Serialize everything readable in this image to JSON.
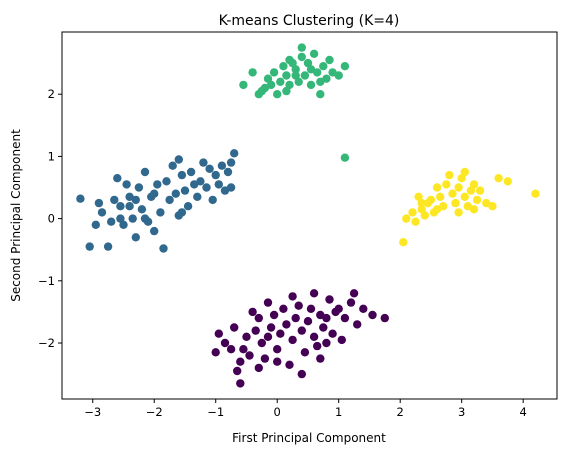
{
  "chart_data": {
    "type": "scatter",
    "title": "K-means Clustering (K=4)",
    "xlabel": "First Principal Component",
    "ylabel": "Second Principal Component",
    "xlim": [
      -3.5,
      4.55
    ],
    "ylim": [
      -2.9,
      3.0
    ],
    "xticks": [
      -3,
      -2,
      -1,
      0,
      1,
      2,
      3,
      4
    ],
    "yticks": [
      -2,
      -1,
      0,
      1,
      2
    ],
    "xtick_labels": [
      "−3",
      "−2",
      "−1",
      "0",
      "1",
      "2",
      "3",
      "4"
    ],
    "ytick_labels": [
      "−2",
      "−1",
      "0",
      "1",
      "2"
    ],
    "grid": false,
    "colors": {
      "cluster_0": "#440154",
      "cluster_1": "#31688e",
      "cluster_2": "#35b779",
      "cluster_3": "#fde725"
    },
    "series": [
      {
        "color_key": "cluster_0",
        "points": [
          [
            -1.0,
            -2.15
          ],
          [
            -0.95,
            -1.85
          ],
          [
            -0.85,
            -2.0
          ],
          [
            -0.7,
            -1.75
          ],
          [
            -0.6,
            -2.3
          ],
          [
            -0.65,
            -2.45
          ],
          [
            -0.6,
            -2.65
          ],
          [
            -0.55,
            -2.1
          ],
          [
            -0.5,
            -1.9
          ],
          [
            -0.45,
            -2.2
          ],
          [
            -0.4,
            -1.5
          ],
          [
            -0.35,
            -1.8
          ],
          [
            -0.3,
            -1.6
          ],
          [
            -0.25,
            -2.0
          ],
          [
            -0.2,
            -2.25
          ],
          [
            -0.15,
            -1.35
          ],
          [
            -0.1,
            -1.75
          ],
          [
            -0.05,
            -1.55
          ],
          [
            0.0,
            -2.1
          ],
          [
            0.05,
            -1.85
          ],
          [
            0.1,
            -1.45
          ],
          [
            0.15,
            -1.7
          ],
          [
            0.2,
            -2.35
          ],
          [
            0.25,
            -1.95
          ],
          [
            0.3,
            -1.6
          ],
          [
            0.35,
            -1.4
          ],
          [
            0.4,
            -1.8
          ],
          [
            0.45,
            -2.15
          ],
          [
            0.5,
            -1.65
          ],
          [
            0.55,
            -1.45
          ],
          [
            0.6,
            -1.9
          ],
          [
            0.65,
            -2.05
          ],
          [
            0.7,
            -1.55
          ],
          [
            0.75,
            -1.75
          ],
          [
            0.8,
            -1.6
          ],
          [
            0.85,
            -1.3
          ],
          [
            0.9,
            -1.85
          ],
          [
            0.95,
            -1.5
          ],
          [
            1.0,
            -1.45
          ],
          [
            1.1,
            -1.6
          ],
          [
            1.2,
            -1.35
          ],
          [
            1.3,
            -1.7
          ],
          [
            1.4,
            -1.45
          ],
          [
            1.55,
            -1.55
          ],
          [
            1.75,
            -1.6
          ],
          [
            -0.3,
            -2.4
          ],
          [
            0.4,
            -2.5
          ],
          [
            0.7,
            -2.25
          ],
          [
            1.05,
            -1.95
          ],
          [
            -0.75,
            -2.1
          ],
          [
            0.25,
            -1.25
          ],
          [
            0.6,
            -1.2
          ],
          [
            1.25,
            -1.2
          ],
          [
            0.8,
            -2.0
          ],
          [
            0.0,
            -2.3
          ],
          [
            -0.15,
            -1.9
          ]
        ]
      },
      {
        "color_key": "cluster_1",
        "points": [
          [
            -3.2,
            0.32
          ],
          [
            -3.05,
            -0.45
          ],
          [
            -2.95,
            -0.1
          ],
          [
            -2.9,
            0.25
          ],
          [
            -2.85,
            0.1
          ],
          [
            -2.75,
            -0.45
          ],
          [
            -2.7,
            -0.05
          ],
          [
            -2.65,
            0.3
          ],
          [
            -2.6,
            0.65
          ],
          [
            -2.55,
            0.2
          ],
          [
            -2.5,
            -0.1
          ],
          [
            -2.45,
            0.55
          ],
          [
            -2.4,
            0.35
          ],
          [
            -2.35,
            0.0
          ],
          [
            -2.3,
            -0.3
          ],
          [
            -2.25,
            0.5
          ],
          [
            -2.2,
            0.15
          ],
          [
            -2.15,
            0.75
          ],
          [
            -2.1,
            -0.05
          ],
          [
            -2.05,
            0.35
          ],
          [
            -2.0,
            -0.2
          ],
          [
            -1.95,
            0.55
          ],
          [
            -1.9,
            0.1
          ],
          [
            -1.85,
            -0.48
          ],
          [
            -1.8,
            0.6
          ],
          [
            -1.75,
            0.3
          ],
          [
            -1.7,
            0.85
          ],
          [
            -1.65,
            0.4
          ],
          [
            -1.6,
            0.05
          ],
          [
            -1.55,
            0.7
          ],
          [
            -1.5,
            0.45
          ],
          [
            -1.45,
            0.2
          ],
          [
            -1.4,
            0.75
          ],
          [
            -1.35,
            0.55
          ],
          [
            -1.3,
            0.35
          ],
          [
            -1.25,
            0.6
          ],
          [
            -1.2,
            0.9
          ],
          [
            -1.15,
            0.5
          ],
          [
            -1.1,
            0.8
          ],
          [
            -1.05,
            0.3
          ],
          [
            -1.0,
            0.7
          ],
          [
            -0.95,
            0.55
          ],
          [
            -0.9,
            0.85
          ],
          [
            -0.85,
            0.45
          ],
          [
            -0.8,
            0.75
          ],
          [
            -0.75,
            0.5
          ],
          [
            -0.7,
            1.05
          ],
          [
            -0.75,
            0.9
          ],
          [
            -1.55,
            0.1
          ],
          [
            -2.55,
            0.0
          ],
          [
            -2.3,
            0.3
          ],
          [
            -2.0,
            0.4
          ],
          [
            -1.6,
            0.95
          ],
          [
            -2.4,
            0.2
          ],
          [
            -2.15,
            0.0
          ]
        ]
      },
      {
        "color_key": "cluster_2",
        "points": [
          [
            -0.55,
            2.15
          ],
          [
            -0.4,
            2.35
          ],
          [
            -0.3,
            2.0
          ],
          [
            -0.2,
            2.1
          ],
          [
            -0.15,
            2.25
          ],
          [
            -0.05,
            2.35
          ],
          [
            0.0,
            2.0
          ],
          [
            0.05,
            2.2
          ],
          [
            0.1,
            2.45
          ],
          [
            0.15,
            2.3
          ],
          [
            0.2,
            2.15
          ],
          [
            0.25,
            2.5
          ],
          [
            0.3,
            2.4
          ],
          [
            0.35,
            2.2
          ],
          [
            0.4,
            2.6
          ],
          [
            0.45,
            2.3
          ],
          [
            0.5,
            2.5
          ],
          [
            0.55,
            2.15
          ],
          [
            0.6,
            2.65
          ],
          [
            0.65,
            2.35
          ],
          [
            0.7,
            2.0
          ],
          [
            0.75,
            2.45
          ],
          [
            0.8,
            2.25
          ],
          [
            0.85,
            2.55
          ],
          [
            0.9,
            2.35
          ],
          [
            1.0,
            2.3
          ],
          [
            1.1,
            2.45
          ],
          [
            0.4,
            2.75
          ],
          [
            0.15,
            2.05
          ],
          [
            0.55,
            2.4
          ],
          [
            -0.1,
            2.15
          ],
          [
            0.3,
            2.3
          ],
          [
            0.7,
            2.2
          ],
          [
            1.1,
            0.98
          ],
          [
            0.2,
            2.55
          ],
          [
            -0.25,
            2.05
          ]
        ]
      },
      {
        "color_key": "cluster_3",
        "points": [
          [
            2.05,
            -0.38
          ],
          [
            2.1,
            0.0
          ],
          [
            2.2,
            0.1
          ],
          [
            2.25,
            -0.05
          ],
          [
            2.3,
            0.35
          ],
          [
            2.35,
            0.15
          ],
          [
            2.4,
            0.05
          ],
          [
            2.45,
            0.25
          ],
          [
            2.5,
            0.3
          ],
          [
            2.55,
            0.1
          ],
          [
            2.6,
            0.5
          ],
          [
            2.65,
            0.35
          ],
          [
            2.7,
            0.2
          ],
          [
            2.75,
            0.55
          ],
          [
            2.8,
            0.7
          ],
          [
            2.85,
            0.4
          ],
          [
            2.9,
            0.25
          ],
          [
            2.95,
            0.5
          ],
          [
            3.0,
            0.65
          ],
          [
            3.05,
            0.35
          ],
          [
            3.1,
            0.2
          ],
          [
            3.15,
            0.45
          ],
          [
            3.2,
            0.55
          ],
          [
            3.25,
            0.3
          ],
          [
            3.3,
            0.45
          ],
          [
            3.4,
            0.25
          ],
          [
            3.5,
            0.2
          ],
          [
            3.6,
            0.65
          ],
          [
            3.75,
            0.6
          ],
          [
            4.2,
            0.4
          ],
          [
            2.6,
            0.15
          ],
          [
            2.95,
            0.1
          ],
          [
            3.05,
            0.75
          ],
          [
            2.35,
            0.25
          ],
          [
            3.2,
            0.15
          ]
        ]
      }
    ]
  }
}
